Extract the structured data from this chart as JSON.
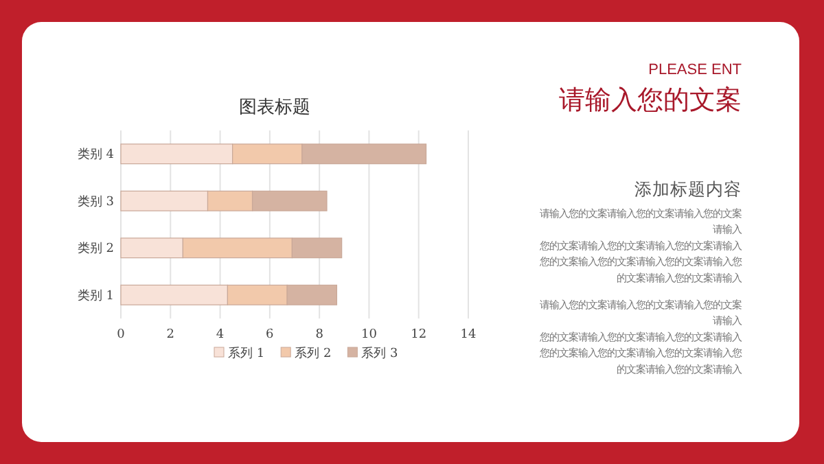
{
  "chart_data": [
    {
      "type": "bar",
      "orientation": "horizontal",
      "stacked": true,
      "title": "图表标题",
      "categories": [
        "类别 4",
        "类别 3",
        "类别 2",
        "类别 1"
      ],
      "series": [
        {
          "name": "系列 1",
          "color": "#f8e2d8",
          "values": [
            4.5,
            3.5,
            2.5,
            4.3
          ]
        },
        {
          "name": "系列 2",
          "color": "#f2c9ab",
          "values": [
            2.8,
            1.8,
            4.4,
            2.4
          ]
        },
        {
          "name": "系列 3",
          "color": "#d5b3a2",
          "values": [
            5,
            3,
            2,
            2
          ]
        }
      ],
      "xlim": [
        0,
        14
      ],
      "xticks": [
        0,
        2,
        4,
        6,
        8,
        10,
        12,
        14
      ],
      "grid": "x",
      "legend": "bottom"
    },
    {
      "type": "other",
      "subtitle": "PLEASE ENT",
      "title": "请输入您的文案",
      "annotations": [
        "添加标题内容",
        "请输入您的文案请输入您的文案请输入您的文案",
        "请输入",
        "您的文案请输入您的文案请输入您的文案请输入",
        "您的文案输入您的文案请输入您的文案请输入您",
        "的文案请输入您的文案请输入",
        "请输入您的文案请输入您的文案请输入您的文案",
        "请输入",
        "您的文案请输入您的文案请输入您的文案请输入",
        "您的文案输入您的文案请输入您的文案请输入您",
        "的文案请输入您的文案请输入"
      ]
    }
  ]
}
